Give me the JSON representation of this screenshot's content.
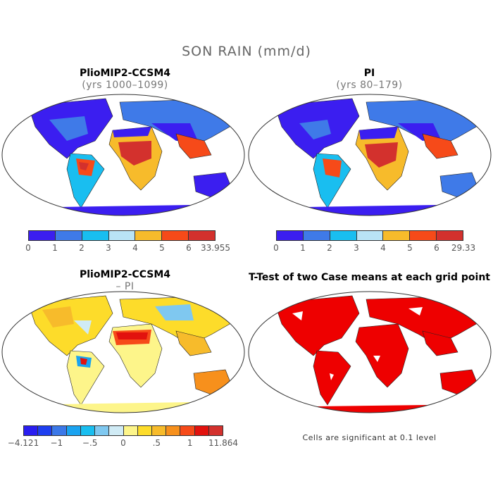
{
  "title": "SON RAIN (mm/d)",
  "panels": [
    {
      "title": "PlioMIP2-CCSM4",
      "subtitle": "(yrs 1000–1099)",
      "colorbar": {
        "colors": [
          "#3b1ef0",
          "#3f7ae8",
          "#19bef0",
          "#b9e3f5",
          "#f7bb2b",
          "#f64a19",
          "#d3312d"
        ],
        "labels": [
          "0",
          "1",
          "2",
          "3",
          "4",
          "5",
          "6",
          "33.955"
        ]
      }
    },
    {
      "title": "PI",
      "subtitle": "(yrs 80–179)",
      "colorbar": {
        "colors": [
          "#3b1ef0",
          "#3f7ae8",
          "#19bef0",
          "#b9e3f5",
          "#f7bb2b",
          "#f64a19",
          "#d3312d"
        ],
        "labels": [
          "0",
          "1",
          "2",
          "3",
          "4",
          "5",
          "6",
          "29.33"
        ]
      }
    },
    {
      "title": "PlioMIP2-CCSM4",
      "subtitle": "– PI",
      "colorbar": {
        "colors": [
          "#2a1ef0",
          "#1e3ff0",
          "#3b78e8",
          "#1aa3f0",
          "#19bef0",
          "#7fc8f0",
          "#d0ebf5",
          "#fdf58a",
          "#fddc2a",
          "#f7bb2b",
          "#f7901c",
          "#f64a19",
          "#e2120e",
          "#d3312d"
        ],
        "labels": [
          "−4.121",
          "−1",
          "−.5",
          "0",
          ".5",
          "1",
          "11.864"
        ]
      }
    },
    {
      "title": "T-Test of two Case means at each grid point",
      "footnote": "Cells are significant at 0.1 level",
      "color": "#ee0000"
    }
  ]
}
